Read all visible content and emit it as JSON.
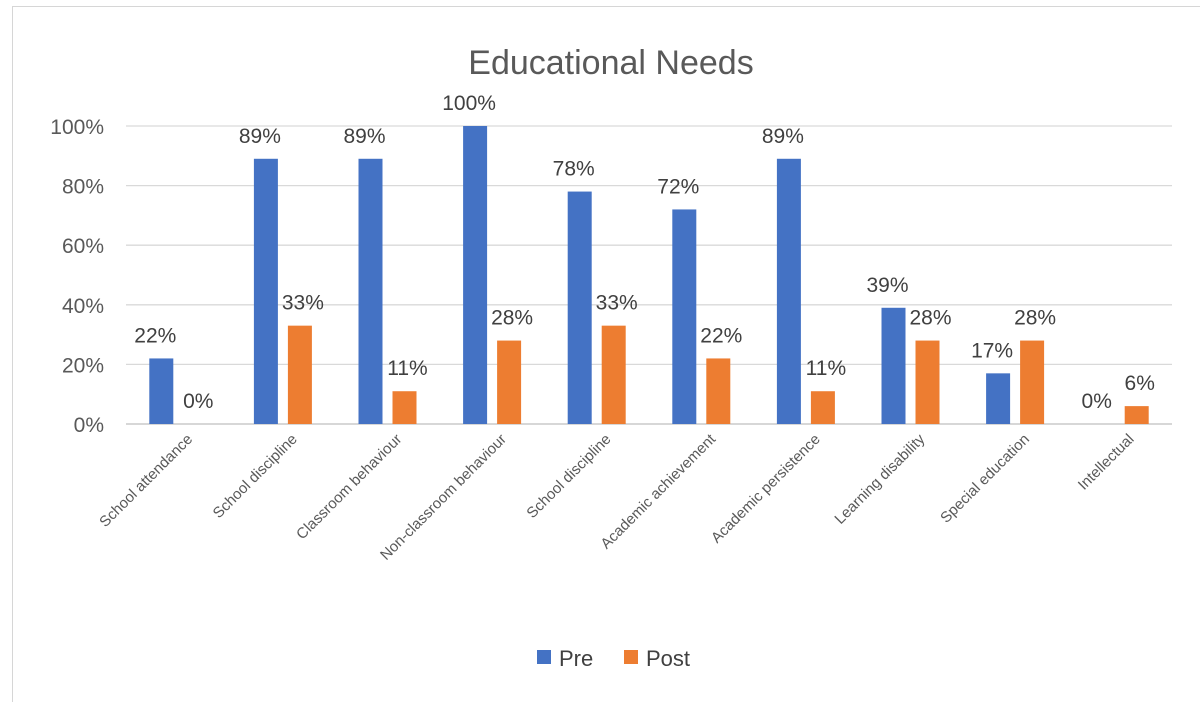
{
  "chart_data": {
    "type": "bar",
    "title": "Educational Needs",
    "categories": [
      "School attendance",
      "School discipline",
      "Classroom behaviour",
      "Non-classroom behaviour",
      "School discipline",
      "Academic achievement",
      "Academic persistence",
      "Learning disability",
      "Special education",
      "Intellectual"
    ],
    "series": [
      {
        "name": "Pre",
        "color": "#4472C4",
        "values": [
          22,
          89,
          89,
          100,
          78,
          72,
          89,
          39,
          17,
          0
        ],
        "labels": [
          "22%",
          "89%",
          "89%",
          "100%",
          "78%",
          "72%",
          "89%",
          "39%",
          "17%",
          "0%"
        ]
      },
      {
        "name": "Post",
        "color": "#ED7D31",
        "values": [
          0,
          33,
          11,
          28,
          33,
          22,
          11,
          28,
          28,
          6
        ],
        "labels": [
          "0%",
          "33%",
          "11%",
          "28%",
          "33%",
          "22%",
          "11%",
          "28%",
          "28%",
          "6%"
        ]
      }
    ],
    "ylim": [
      0,
      100
    ],
    "yticks": [
      0,
      20,
      40,
      60,
      80,
      100
    ],
    "ytick_labels": [
      "0%",
      "20%",
      "40%",
      "60%",
      "80%",
      "100%"
    ],
    "grid": true,
    "legend_position": "bottom"
  }
}
